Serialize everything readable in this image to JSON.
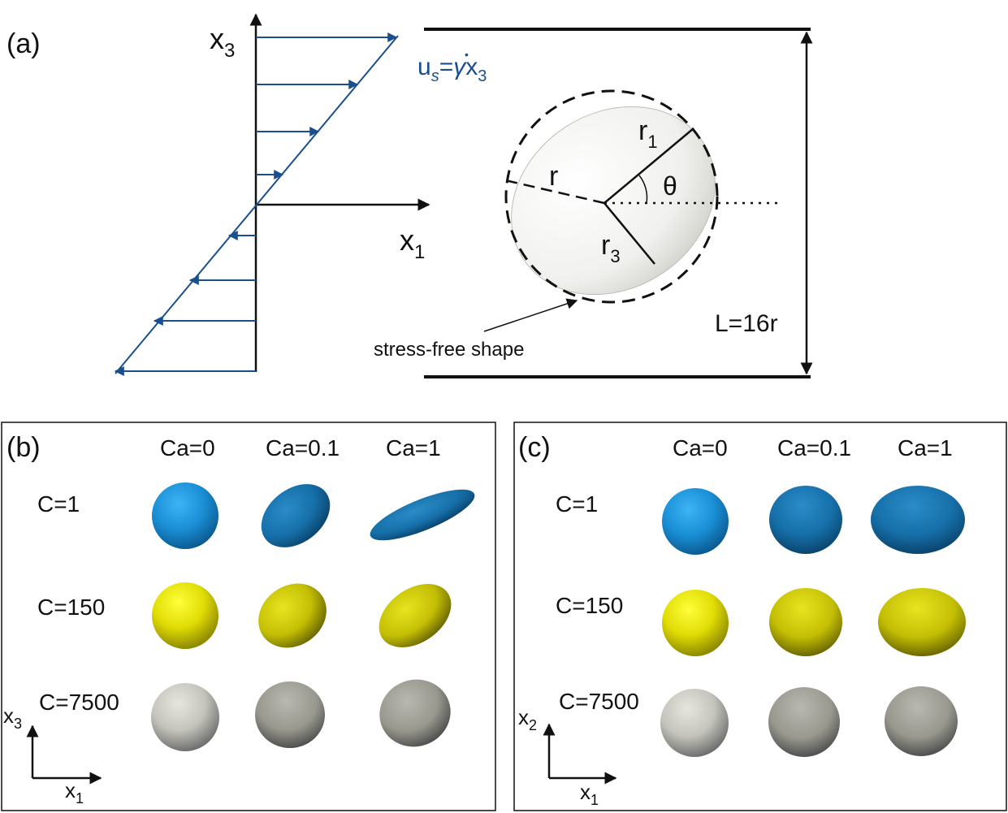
{
  "panel_a": {
    "label": "(a)",
    "axis_vertical": "x",
    "axis_vertical_sub": "3",
    "axis_horizontal": "x",
    "axis_horizontal_sub": "1",
    "flow_u": "u",
    "flow_u_sub": "s",
    "flow_eq": "=",
    "flow_gamma": "γ",
    "flow_gamma_dot": "•",
    "flow_x": "x",
    "flow_x_sub": "3",
    "radius_r": "r",
    "radius_r1": "r",
    "radius_r1_sub": "1",
    "radius_r3": "r",
    "radius_r3_sub": "3",
    "angle": "θ",
    "stress_free_label": "stress-free shape",
    "box_height_label": "L=16r",
    "colors": {
      "flow": "#1a4f8f",
      "lines": "#111111"
    }
  },
  "panel_b": {
    "label": "(b)",
    "columns": [
      "Ca=0",
      "Ca=0.1",
      "Ca=1"
    ],
    "rows": [
      "C=1",
      "C=150",
      "C=7500"
    ],
    "axis_vertical": "x",
    "axis_vertical_sub": "3",
    "axis_horizontal": "x",
    "axis_horizontal_sub": "1"
  },
  "panel_c": {
    "label": "(c)",
    "columns": [
      "Ca=0",
      "Ca=0.1",
      "Ca=1"
    ],
    "rows": [
      "C=1",
      "C=150",
      "C=7500"
    ],
    "axis_vertical": "x",
    "axis_vertical_sub": "2",
    "axis_horizontal": "x",
    "axis_horizontal_sub": "1"
  },
  "capsule_colors": {
    "C=1": "#1a8fd6",
    "C=150": "#d9d500",
    "C=7500": "#a8a8a0"
  }
}
